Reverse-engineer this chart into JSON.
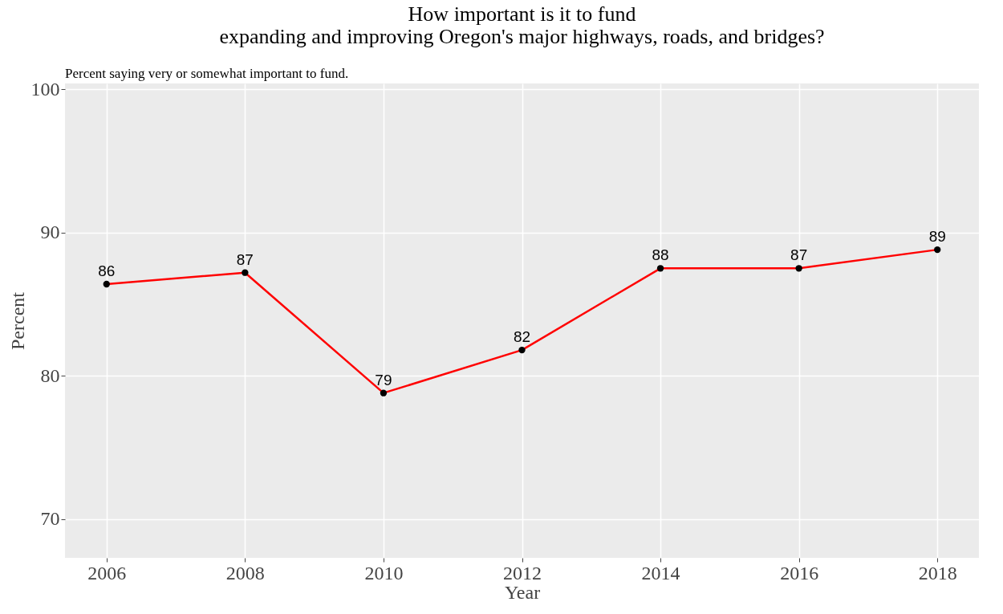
{
  "chart_data": {
    "type": "line",
    "title": [
      "How important is it to fund",
      "expanding and improving Oregon's major highways, roads, and bridges?"
    ],
    "subtitle": "Percent saying very or somewhat important to fund.",
    "xlabel": "Year",
    "ylabel": "Percent",
    "x": [
      2006,
      2008,
      2010,
      2012,
      2014,
      2016,
      2018
    ],
    "series": [
      {
        "color": "#ff0000",
        "values": [
          86.4,
          87.2,
          78.8,
          81.8,
          87.5,
          87.5,
          88.8
        ],
        "value_labels": [
          "86",
          "87",
          "79",
          "82",
          "88",
          "87",
          "89"
        ]
      }
    ],
    "xlim": [
      2005.4,
      2018.6
    ],
    "xticks": [
      2006,
      2008,
      2010,
      2012,
      2014,
      2016,
      2018
    ],
    "ylim": [
      67.3,
      100.4
    ],
    "yticks": [
      70,
      80,
      90,
      100
    ],
    "grid": true,
    "marker": "circle",
    "line_style": "solid"
  }
}
